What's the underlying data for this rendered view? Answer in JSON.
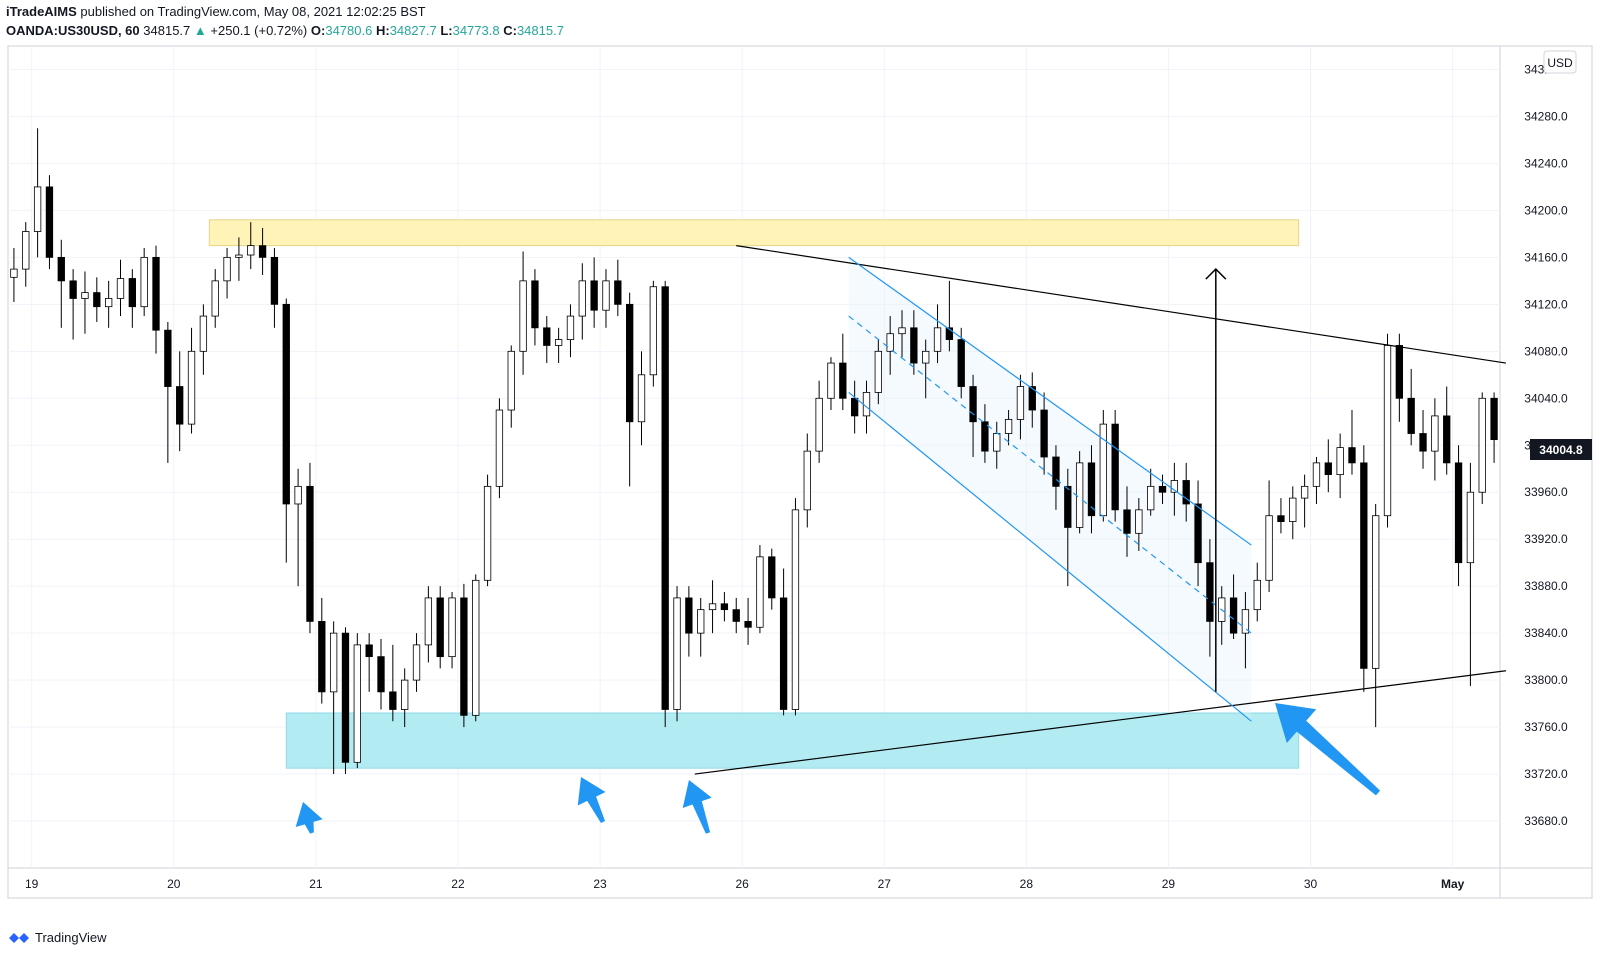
{
  "header": {
    "publisher": "iTradeAIMS",
    "published_text": "published on TradingView.com, May 08, 2021 12:02:25 BST",
    "symbol": "OANDA:US30USD, 60",
    "last": "34815.7",
    "change_arrow": "▲",
    "change": "+250.1 (+0.72%)",
    "o_label": "O:",
    "o_value": "34780.6",
    "h_label": "H:",
    "h_value": "34827.7",
    "l_label": "L:",
    "l_value": "34773.8",
    "c_label": "C:",
    "c_value": "34815.7"
  },
  "currency_badge": "USD",
  "current_price_label": "34004.8",
  "footer": {
    "brand": "TradingView"
  },
  "colors": {
    "candle_up": "#ffffff",
    "candle_down": "#000000",
    "resistance_zone": "#fff3b8",
    "support_zone": "#b2ebf2",
    "channel": "#2196f3",
    "arrow": "#2196f3",
    "price_tag": "#131722"
  },
  "chart_data": {
    "type": "candlestick",
    "ylim": [
      33640,
      34340
    ],
    "y_ticks": [
      "33680.0",
      "33720.0",
      "33760.0",
      "33800.0",
      "33840.0",
      "33880.0",
      "33920.0",
      "33960.0",
      "34000.0",
      "34040.0",
      "34080.0",
      "34120.0",
      "34160.0",
      "34200.0",
      "34240.0",
      "34280.0",
      "34320.0"
    ],
    "x_ticks": [
      "19",
      "20",
      "21",
      "22",
      "23",
      "26",
      "27",
      "28",
      "29",
      "30",
      "May"
    ],
    "x_tick_index": [
      1.5,
      13.5,
      25.5,
      37.5,
      49.5,
      61.5,
      73.5,
      85.5,
      97.5,
      109.5,
      121.5
    ],
    "candles_count": 126,
    "candles": [
      [
        34143,
        34168,
        34122,
        34150
      ],
      [
        34150,
        34190,
        34135,
        34182
      ],
      [
        34182,
        34270,
        34160,
        34220
      ],
      [
        34220,
        34230,
        34150,
        34160
      ],
      [
        34160,
        34175,
        34100,
        34140
      ],
      [
        34140,
        34150,
        34090,
        34125
      ],
      [
        34125,
        34148,
        34095,
        34130
      ],
      [
        34130,
        34143,
        34105,
        34118
      ],
      [
        34118,
        34140,
        34100,
        34125
      ],
      [
        34125,
        34158,
        34110,
        34142
      ],
      [
        34142,
        34150,
        34100,
        34118
      ],
      [
        34118,
        34168,
        34110,
        34160
      ],
      [
        34160,
        34170,
        34078,
        34098
      ],
      [
        34098,
        34105,
        33985,
        34050
      ],
      [
        34050,
        34080,
        33995,
        34018
      ],
      [
        34018,
        34100,
        34010,
        34080
      ],
      [
        34080,
        34120,
        34060,
        34110
      ],
      [
        34110,
        34150,
        34100,
        34140
      ],
      [
        34140,
        34168,
        34125,
        34160
      ],
      [
        34160,
        34177,
        34140,
        34162
      ],
      [
        34162,
        34190,
        34150,
        34170
      ],
      [
        34170,
        34185,
        34145,
        34160
      ],
      [
        34160,
        34168,
        34100,
        34120
      ],
      [
        34120,
        34125,
        33900,
        33950
      ],
      [
        33950,
        33980,
        33880,
        33965
      ],
      [
        33965,
        33985,
        33840,
        33850
      ],
      [
        33850,
        33870,
        33780,
        33790
      ],
      [
        33790,
        33850,
        33720,
        33840
      ],
      [
        33840,
        33845,
        33720,
        33730
      ],
      [
        33730,
        33840,
        33725,
        33830
      ],
      [
        33830,
        33840,
        33790,
        33820
      ],
      [
        33820,
        33835,
        33775,
        33790
      ],
      [
        33790,
        33830,
        33765,
        33775
      ],
      [
        33775,
        33810,
        33760,
        33800
      ],
      [
        33800,
        33840,
        33790,
        33830
      ],
      [
        33830,
        33880,
        33815,
        33870
      ],
      [
        33870,
        33880,
        33810,
        33820
      ],
      [
        33820,
        33875,
        33810,
        33870
      ],
      [
        33870,
        33882,
        33760,
        33770
      ],
      [
        33770,
        33890,
        33765,
        33885
      ],
      [
        33885,
        33975,
        33880,
        33965
      ],
      [
        33965,
        34040,
        33955,
        34030
      ],
      [
        34030,
        34085,
        34015,
        34080
      ],
      [
        34080,
        34165,
        34060,
        34140
      ],
      [
        34140,
        34150,
        34085,
        34100
      ],
      [
        34100,
        34110,
        34070,
        34085
      ],
      [
        34085,
        34100,
        34070,
        34090
      ],
      [
        34090,
        34120,
        34075,
        34110
      ],
      [
        34110,
        34155,
        34090,
        34140
      ],
      [
        34140,
        34160,
        34100,
        34115
      ],
      [
        34115,
        34150,
        34100,
        34140
      ],
      [
        34140,
        34158,
        34110,
        34120
      ],
      [
        34120,
        34130,
        33965,
        34020
      ],
      [
        34020,
        34080,
        34000,
        34060
      ],
      [
        34060,
        34140,
        34050,
        34135
      ],
      [
        34135,
        34140,
        33760,
        33775
      ],
      [
        33775,
        33880,
        33765,
        33870
      ],
      [
        33870,
        33880,
        33820,
        33840
      ],
      [
        33840,
        33870,
        33820,
        33860
      ],
      [
        33860,
        33885,
        33840,
        33865
      ],
      [
        33865,
        33875,
        33850,
        33860
      ],
      [
        33860,
        33870,
        33840,
        33850
      ],
      [
        33850,
        33870,
        33830,
        33845
      ],
      [
        33845,
        33915,
        33840,
        33905
      ],
      [
        33905,
        33912,
        33860,
        33870
      ],
      [
        33870,
        33895,
        33770,
        33775
      ],
      [
        33775,
        33955,
        33770,
        33945
      ],
      [
        33945,
        34010,
        33930,
        33995
      ],
      [
        33995,
        34055,
        33985,
        34040
      ],
      [
        34040,
        34075,
        34030,
        34070
      ],
      [
        34070,
        34095,
        34030,
        34040
      ],
      [
        34040,
        34055,
        34010,
        34025
      ],
      [
        34025,
        34055,
        34010,
        34045
      ],
      [
        34045,
        34090,
        34035,
        34080
      ],
      [
        34080,
        34110,
        34060,
        34095
      ],
      [
        34095,
        34115,
        34075,
        34100
      ],
      [
        34100,
        34115,
        34060,
        34070
      ],
      [
        34070,
        34090,
        34040,
        34080
      ],
      [
        34080,
        34120,
        34070,
        34100
      ],
      [
        34100,
        34140,
        34080,
        34090
      ],
      [
        34090,
        34100,
        34040,
        34050
      ],
      [
        34050,
        34060,
        33990,
        34020
      ],
      [
        34020,
        34035,
        33985,
        33995
      ],
      [
        33995,
        34020,
        33980,
        34010
      ],
      [
        34010,
        34030,
        34000,
        34022
      ],
      [
        34022,
        34060,
        34005,
        34050
      ],
      [
        34050,
        34062,
        34015,
        34030
      ],
      [
        34030,
        34045,
        33975,
        33990
      ],
      [
        33990,
        34000,
        33945,
        33965
      ],
      [
        33965,
        33980,
        33880,
        33930
      ],
      [
        33930,
        33995,
        33925,
        33985
      ],
      [
        33985,
        34000,
        33925,
        33940
      ],
      [
        33940,
        34030,
        33935,
        34018
      ],
      [
        34018,
        34030,
        33935,
        33945
      ],
      [
        33945,
        33965,
        33905,
        33925
      ],
      [
        33925,
        33955,
        33910,
        33945
      ],
      [
        33945,
        33980,
        33940,
        33965
      ],
      [
        33965,
        33975,
        33950,
        33960
      ],
      [
        33960,
        33985,
        33940,
        33970
      ],
      [
        33970,
        33985,
        33935,
        33950
      ],
      [
        33950,
        33970,
        33880,
        33900
      ],
      [
        33900,
        33920,
        33820,
        33850
      ],
      [
        33850,
        33880,
        33830,
        33870
      ],
      [
        33870,
        33890,
        33835,
        33840
      ],
      [
        33840,
        33875,
        33810,
        33860
      ],
      [
        33860,
        33900,
        33850,
        33885
      ],
      [
        33885,
        33970,
        33875,
        33940
      ],
      [
        33940,
        33955,
        33925,
        33935
      ],
      [
        33935,
        33965,
        33920,
        33955
      ],
      [
        33955,
        33975,
        33930,
        33965
      ],
      [
        33965,
        33990,
        33950,
        33985
      ],
      [
        33985,
        34005,
        33960,
        33975
      ],
      [
        33975,
        34010,
        33955,
        33998
      ],
      [
        33998,
        34030,
        33975,
        33985
      ],
      [
        33985,
        34000,
        33790,
        33810
      ],
      [
        33810,
        33950,
        33760,
        33940
      ],
      [
        33940,
        34095,
        33930,
        34085
      ],
      [
        34085,
        34095,
        34020,
        34040
      ],
      [
        34040,
        34065,
        34000,
        34010
      ],
      [
        34010,
        34030,
        33980,
        33995
      ],
      [
        33995,
        34040,
        33970,
        34025
      ],
      [
        34025,
        34050,
        33975,
        33985
      ],
      [
        33985,
        34000,
        33880,
        33900
      ],
      [
        33900,
        33985,
        33795,
        33960
      ],
      [
        33960,
        34045,
        33950,
        34040
      ],
      [
        34040,
        34045,
        33985,
        34004.8
      ]
    ],
    "resistance_zone": {
      "y_top": 34192,
      "y_bottom": 34170,
      "x_start_index": 16.5,
      "x_end_index": 108.5
    },
    "support_zone": {
      "y_top": 33772,
      "y_bottom": 33725,
      "x_start_index": 23,
      "x_end_index": 108.5
    },
    "upper_trendline": {
      "from": [
        61,
        34170
      ],
      "to": [
        126,
        34070
      ]
    },
    "lower_trendline": {
      "from": [
        57.5,
        33720
      ],
      "to": [
        126,
        33808
      ]
    },
    "channel": {
      "upper": {
        "from": [
          70.5,
          34160
        ],
        "to": [
          104.5,
          33915
        ]
      },
      "middle_dashed": {
        "from": [
          70.5,
          34110
        ],
        "to": [
          104.5,
          33840
        ]
      },
      "lower": {
        "from": [
          70.5,
          34045
        ],
        "to": [
          104.5,
          33765
        ]
      }
    },
    "vertical_arrow": {
      "x_index": 101.5,
      "from": 33790,
      "to": 34150
    }
  }
}
